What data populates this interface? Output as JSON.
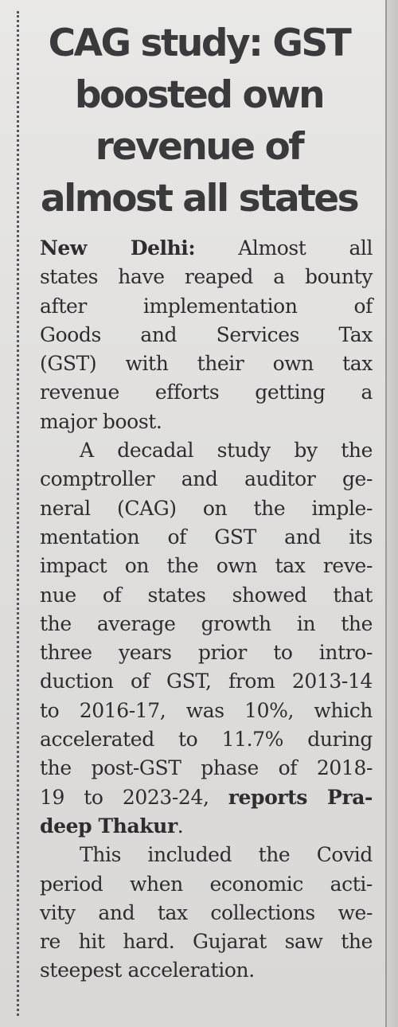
{
  "article": {
    "headline_lines": [
      "CAG study: GST",
      "boosted own",
      "revenue of",
      "almost all states"
    ],
    "dateline": "New Delhi:",
    "paragraphs": [
      {
        "lines": [
          " Almost all",
          "states have reaped a bounty",
          "after implementation of",
          "Goods and Services Tax",
          "(GST) with their own tax",
          "revenue efforts getting a",
          "major boost."
        ]
      },
      {
        "lines": [
          "A decadal study by the",
          "comptroller and auditor ge-",
          "neral (CAG) on the imple-",
          "mentation of GST and its",
          "impact on the own tax reve-",
          "nue of states showed that",
          "the average growth in the",
          "three years prior to intro-",
          "duction of GST, from 2013-14",
          "to 2016-17, was 10%, which",
          "accelerated to 11.7% during",
          "the post-GST phase of 2018-",
          "19 to 2023-24, "
        ],
        "byline_part1": "reports Pra-",
        "byline_part2": "deep Thakur",
        "byline_end": "."
      },
      {
        "lines": [
          "This included the Covid",
          "period when economic acti-",
          "vity and tax collections we-",
          "re hit hard. Gujarat saw the",
          "steepest acceleration."
        ]
      }
    ]
  }
}
